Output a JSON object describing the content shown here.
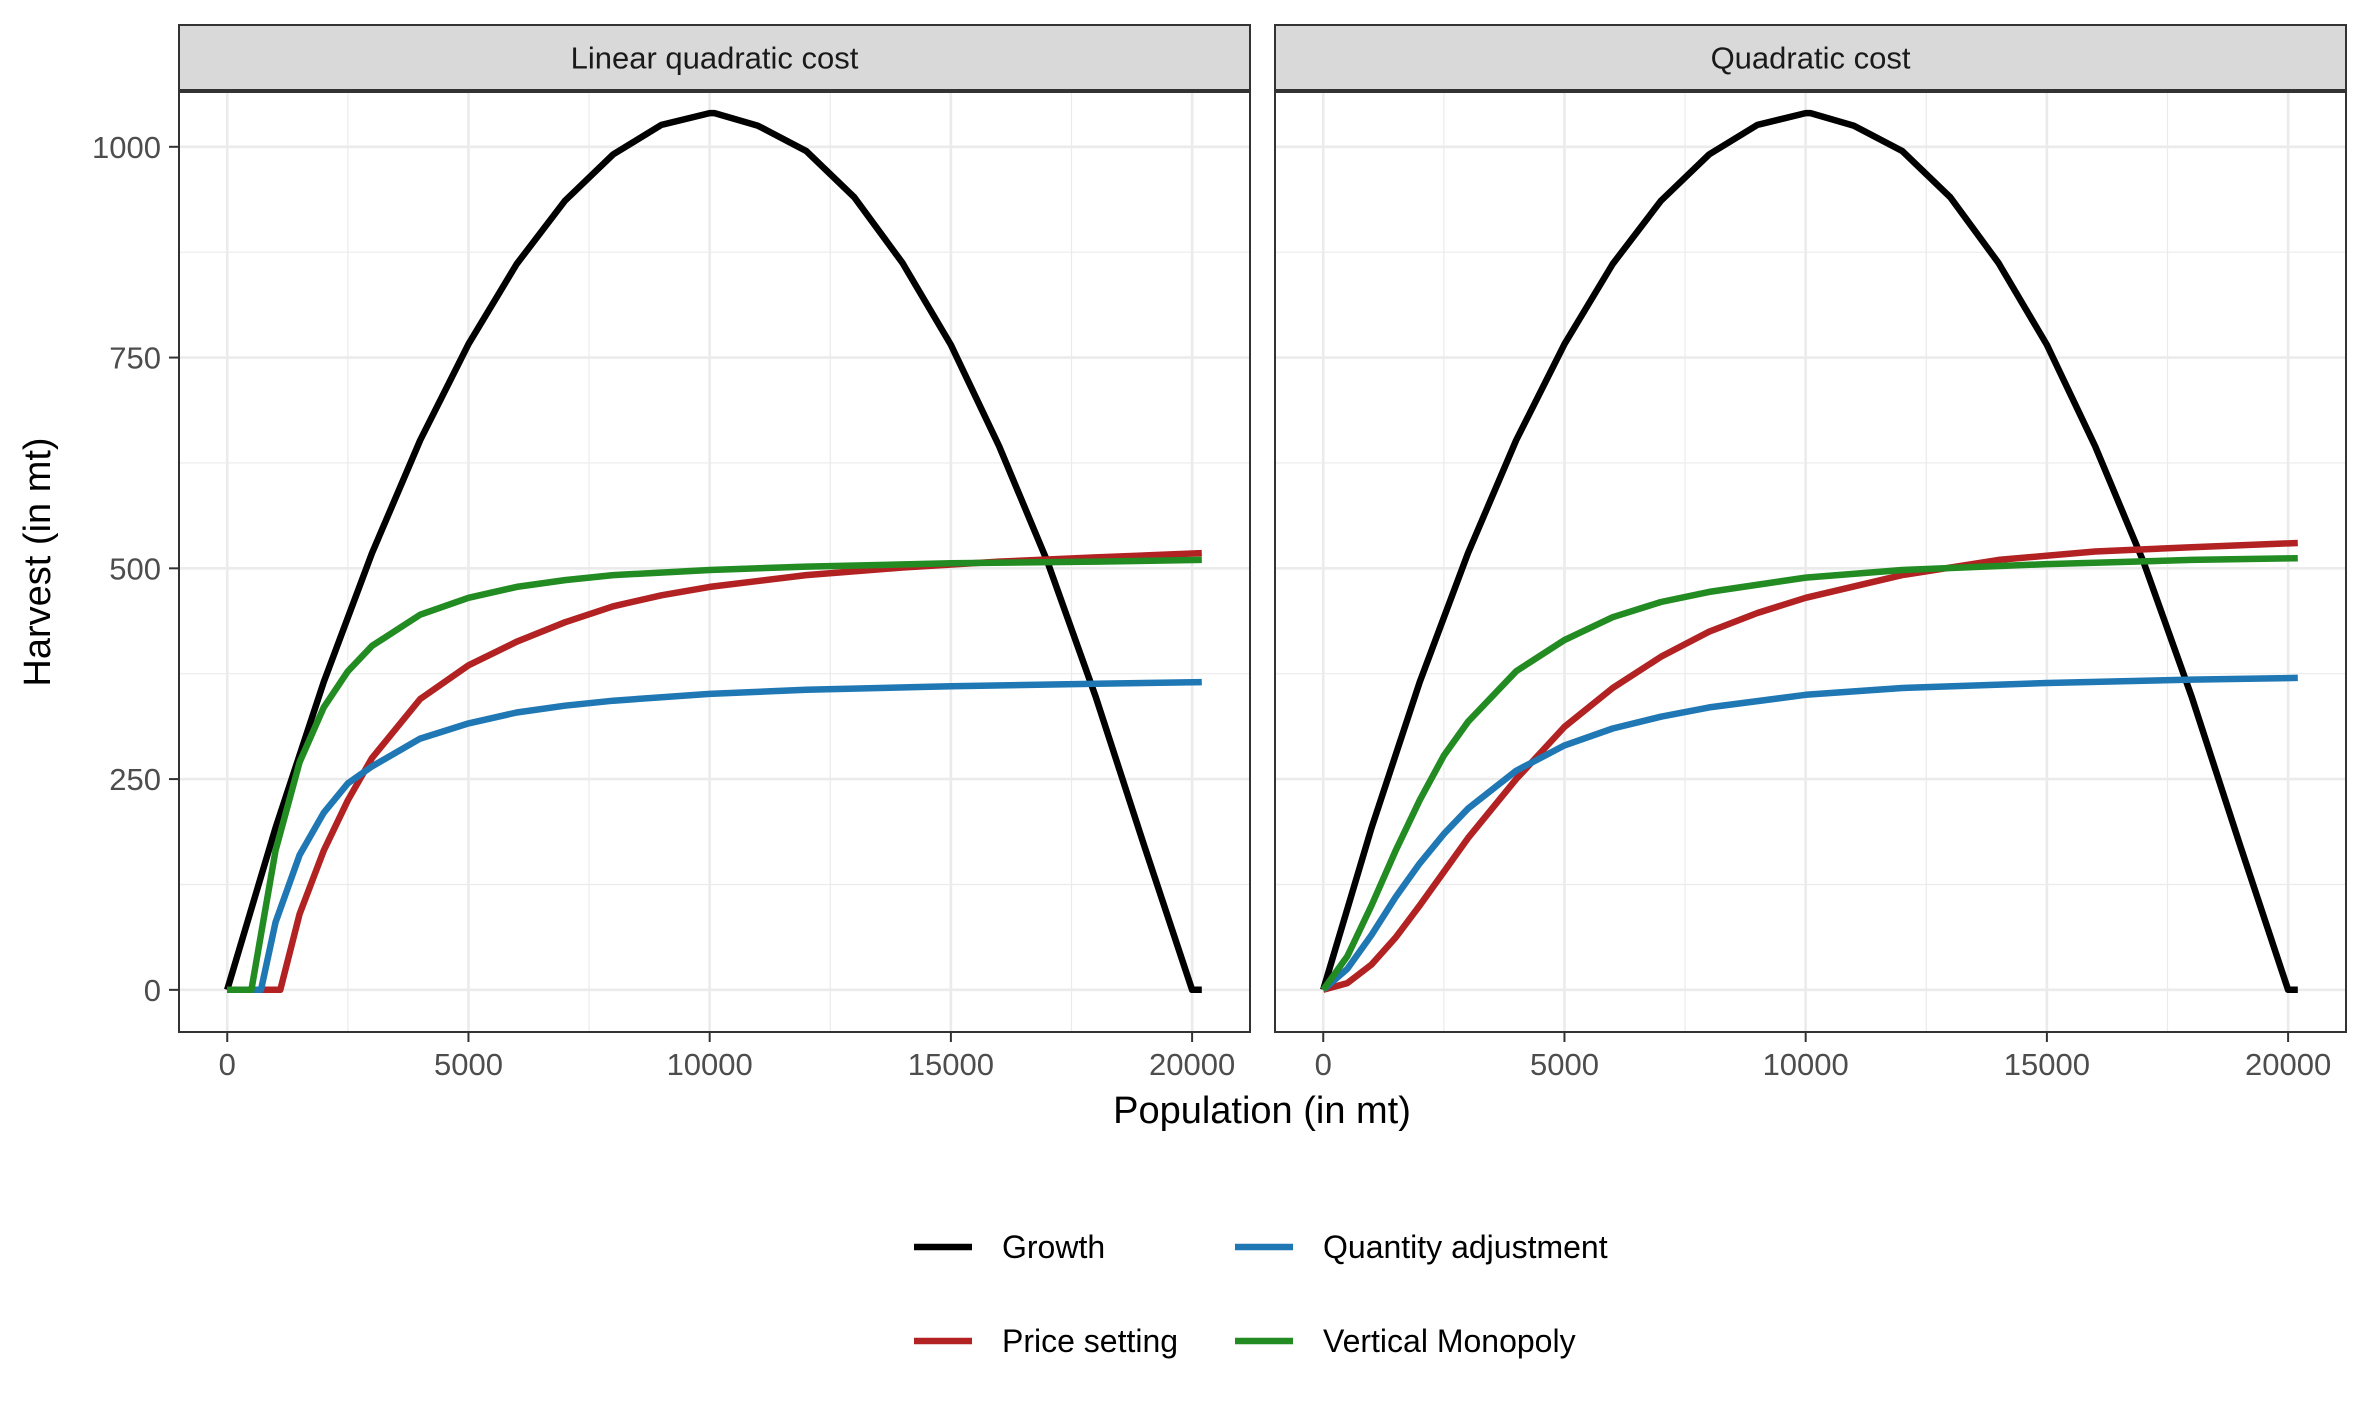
{
  "chart_data": [
    {
      "type": "line",
      "title": "Linear quadratic cost",
      "xlabel": "Population (in mt)",
      "ylabel": "Harvest (in mt)",
      "xlim": [
        -1000,
        21200
      ],
      "ylim": [
        -50,
        1065
      ],
      "x_ticks": [
        0,
        5000,
        10000,
        15000,
        20000
      ],
      "y_ticks": [
        0,
        250,
        500,
        750,
        1000
      ],
      "grid": true,
      "series": [
        {
          "name": "Growth",
          "color": "#000000",
          "x": [
            0,
            1000,
            2000,
            3000,
            4000,
            5000,
            6000,
            7000,
            8000,
            9000,
            10000,
            10100,
            11000,
            12000,
            13000,
            14000,
            15000,
            16000,
            17000,
            18000,
            19000,
            20000,
            20200
          ],
          "y": [
            0,
            192,
            365,
            518,
            652,
            766,
            861,
            936,
            991,
            1026,
            1040,
            1040,
            1025,
            995,
            940,
            862,
            765,
            645,
            508,
            348,
            172,
            0,
            0
          ]
        },
        {
          "name": "Price setting",
          "color": "#b22222",
          "x": [
            0,
            1000,
            1100,
            1500,
            2000,
            2500,
            3000,
            4000,
            5000,
            6000,
            7000,
            8000,
            9000,
            10000,
            12000,
            14000,
            16000,
            18000,
            20200
          ],
          "y": [
            0,
            0,
            0,
            90,
            165,
            225,
            275,
            345,
            385,
            413,
            436,
            455,
            468,
            478,
            492,
            501,
            508,
            513,
            518
          ]
        },
        {
          "name": "Quantity adjustment",
          "color": "#1f77b4",
          "x": [
            0,
            600,
            700,
            1000,
            1500,
            2000,
            2500,
            3000,
            4000,
            5000,
            6000,
            7000,
            8000,
            10000,
            12000,
            15000,
            18000,
            20200
          ],
          "y": [
            0,
            0,
            0,
            80,
            160,
            210,
            245,
            265,
            298,
            316,
            329,
            337,
            343,
            351,
            356,
            360,
            363,
            365
          ]
        },
        {
          "name": "Vertical Monopoly",
          "color": "#228b22",
          "x": [
            0,
            400,
            500,
            1000,
            1500,
            2000,
            2500,
            3000,
            4000,
            5000,
            6000,
            7000,
            8000,
            10000,
            12000,
            15000,
            18000,
            20200
          ],
          "y": [
            0,
            0,
            0,
            165,
            270,
            335,
            378,
            408,
            445,
            465,
            478,
            486,
            492,
            498,
            502,
            506,
            508,
            510
          ]
        }
      ]
    },
    {
      "type": "line",
      "title": "Quadratic cost",
      "xlabel": "Population (in mt)",
      "ylabel": "Harvest (in mt)",
      "xlim": [
        -1000,
        21200
      ],
      "ylim": [
        -50,
        1065
      ],
      "x_ticks": [
        0,
        5000,
        10000,
        15000,
        20000
      ],
      "y_ticks": [
        0,
        250,
        500,
        750,
        1000
      ],
      "grid": true,
      "series": [
        {
          "name": "Growth",
          "color": "#000000",
          "x": [
            0,
            1000,
            2000,
            3000,
            4000,
            5000,
            6000,
            7000,
            8000,
            9000,
            10000,
            10100,
            11000,
            12000,
            13000,
            14000,
            15000,
            16000,
            17000,
            18000,
            19000,
            20000,
            20200
          ],
          "y": [
            0,
            192,
            365,
            518,
            652,
            766,
            861,
            936,
            991,
            1026,
            1040,
            1040,
            1025,
            995,
            940,
            862,
            765,
            645,
            508,
            348,
            172,
            0,
            0
          ]
        },
        {
          "name": "Price setting",
          "color": "#b22222",
          "x": [
            0,
            500,
            1000,
            1500,
            2000,
            2500,
            3000,
            4000,
            5000,
            6000,
            7000,
            8000,
            9000,
            10000,
            12000,
            14000,
            16000,
            18000,
            20200
          ],
          "y": [
            0,
            8,
            30,
            62,
            100,
            140,
            180,
            250,
            312,
            358,
            395,
            425,
            447,
            465,
            492,
            510,
            520,
            525,
            530
          ]
        },
        {
          "name": "Quantity adjustment",
          "color": "#1f77b4",
          "x": [
            0,
            500,
            1000,
            1500,
            2000,
            2500,
            3000,
            4000,
            5000,
            6000,
            7000,
            8000,
            10000,
            12000,
            15000,
            18000,
            20200
          ],
          "y": [
            0,
            25,
            65,
            110,
            150,
            185,
            215,
            260,
            290,
            310,
            324,
            335,
            350,
            358,
            364,
            368,
            370
          ]
        },
        {
          "name": "Vertical Monopoly",
          "color": "#228b22",
          "x": [
            0,
            500,
            1000,
            1500,
            2000,
            2500,
            3000,
            4000,
            5000,
            6000,
            7000,
            8000,
            10000,
            12000,
            15000,
            18000,
            20200
          ],
          "y": [
            0,
            40,
            100,
            165,
            225,
            278,
            318,
            378,
            415,
            442,
            460,
            472,
            489,
            498,
            505,
            510,
            512
          ]
        }
      ]
    }
  ],
  "legend": {
    "position": "bottom",
    "items": [
      {
        "label": "Growth",
        "color": "#000000"
      },
      {
        "label": "Quantity adjustment",
        "color": "#1f77b4"
      },
      {
        "label": "Price setting",
        "color": "#b22222"
      },
      {
        "label": "Vertical Monopoly",
        "color": "#228b22"
      }
    ]
  },
  "colors": {
    "strip_fill": "#d9d9d9",
    "panel_border": "#333333",
    "grid_major": "#ebebeb"
  }
}
